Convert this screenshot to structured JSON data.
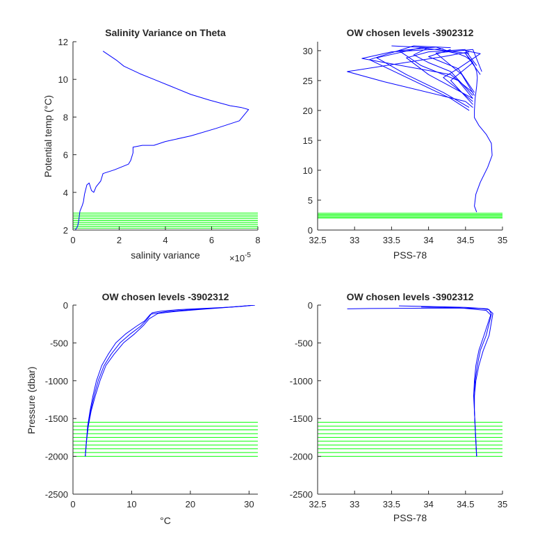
{
  "colors": {
    "profile": "#0000ff",
    "levels": "#00ff00",
    "axis": "#262626",
    "background": "#ffffff"
  },
  "chart_data": [
    {
      "id": "p1",
      "type": "line",
      "title": "Salinity Variance on Theta",
      "xlabel": "salinity variance",
      "ylabel": "Potential temp (°C)",
      "xlim": [
        0,
        8
      ],
      "ylim": [
        2,
        12
      ],
      "xticks": [
        0,
        2,
        4,
        6,
        8
      ],
      "yticks": [
        2,
        4,
        6,
        8,
        10,
        12
      ],
      "x_exponent_label": "×10",
      "x_exponent": "-5",
      "series": [
        {
          "kind": "profile",
          "x": [
            1.3,
            1.9,
            2.2,
            2.9,
            3.5,
            4.3,
            5.1,
            5.9,
            6.8,
            7.3,
            7.6,
            7.2,
            6.2,
            5.1,
            4.0,
            3.5,
            3.0,
            2.6,
            2.6,
            2.5,
            2.4,
            1.8,
            1.3,
            1.2,
            1.0,
            0.9,
            0.8,
            0.7,
            0.6,
            0.5,
            0.45,
            0.4,
            0.3,
            0.25,
            0.2,
            0.1
          ],
          "y": [
            11.5,
            11.0,
            10.7,
            10.3,
            10.0,
            9.6,
            9.2,
            8.9,
            8.6,
            8.5,
            8.4,
            7.8,
            7.4,
            7.0,
            6.7,
            6.5,
            6.5,
            6.4,
            6.1,
            5.7,
            5.5,
            5.2,
            5.0,
            4.6,
            4.3,
            4.0,
            4.1,
            4.5,
            4.4,
            3.9,
            3.5,
            3.3,
            3.0,
            2.5,
            2.2,
            2.0
          ]
        }
      ],
      "hlines": {
        "values": [
          2.1,
          2.2,
          2.3,
          2.4,
          2.5,
          2.6,
          2.7,
          2.8,
          2.9
        ],
        "xrange": [
          0,
          8
        ]
      }
    },
    {
      "id": "p2",
      "type": "line",
      "title": "OW chosen levels -3902312",
      "xlabel": "PSS-78",
      "ylabel": "",
      "xlim": [
        32.5,
        35
      ],
      "ylim": [
        0,
        31.5
      ],
      "xticks": [
        32.5,
        33,
        33.5,
        34,
        34.5,
        35
      ],
      "yticks": [
        0,
        5,
        10,
        15,
        20,
        25,
        30
      ],
      "series": [
        {
          "kind": "profile",
          "x": [
            34.65,
            34.62,
            34.64,
            34.7,
            34.8,
            34.86,
            34.85,
            34.78,
            34.68,
            34.62,
            34.62,
            34.63,
            34.65,
            34.66,
            34.65,
            34.62,
            34.58,
            34.5,
            34.4,
            34.2
          ],
          "y": [
            3.0,
            4.0,
            6.0,
            8.0,
            10.5,
            12.5,
            14.5,
            16.0,
            17.5,
            18.8,
            20.0,
            22.0,
            24.0,
            25.5,
            26.5,
            27.5,
            28.3,
            29.0,
            29.5,
            30.0
          ]
        },
        {
          "kind": "profile",
          "x": [
            34.6,
            34.5,
            33.4,
            32.9,
            34.2,
            34.55
          ],
          "y": [
            20.5,
            21.5,
            24.8,
            26.5,
            29.0,
            29.8
          ]
        },
        {
          "kind": "profile",
          "x": [
            34.55,
            34.3,
            33.2,
            33.8,
            34.3
          ],
          "y": [
            20.0,
            22.0,
            28.5,
            30.8,
            30.5
          ]
        },
        {
          "kind": "profile",
          "x": [
            34.55,
            34.2,
            33.7,
            33.3,
            33.9,
            34.55
          ],
          "y": [
            20.5,
            23.0,
            26.0,
            28.8,
            30.5,
            29.5
          ]
        },
        {
          "kind": "profile",
          "x": [
            34.6,
            34.3,
            34.6,
            34.5,
            34.7
          ],
          "y": [
            21.0,
            25.0,
            28.0,
            29.5,
            26.0
          ]
        },
        {
          "kind": "profile",
          "x": [
            34.6,
            34.2,
            34.4,
            34.0,
            34.3
          ],
          "y": [
            21.5,
            25.5,
            27.0,
            29.0,
            30.2
          ]
        },
        {
          "kind": "profile",
          "x": [
            34.6,
            34.4,
            33.9,
            33.6,
            34.1,
            34.35
          ],
          "y": [
            22.0,
            25.0,
            27.5,
            30.0,
            30.6,
            29.6
          ]
        },
        {
          "kind": "profile",
          "x": [
            34.6,
            34.0,
            33.7,
            34.0,
            34.5
          ],
          "y": [
            22.0,
            26.0,
            28.8,
            29.8,
            30.2
          ]
        },
        {
          "kind": "profile",
          "x": [
            34.62,
            34.4,
            34.7,
            34.5,
            34.65
          ],
          "y": [
            23.0,
            27.0,
            29.5,
            30.0,
            27.5
          ]
        },
        {
          "kind": "profile",
          "x": [
            34.6,
            34.3,
            34.0,
            33.8,
            34.0,
            33.5
          ],
          "y": [
            22.5,
            26.5,
            28.0,
            29.3,
            30.5,
            30.8
          ]
        },
        {
          "kind": "profile",
          "x": [
            34.6,
            34.3,
            33.1,
            33.5,
            34.2
          ],
          "y": [
            23.0,
            26.0,
            28.7,
            29.8,
            30.3
          ]
        },
        {
          "kind": "profile",
          "x": [
            34.62,
            34.45,
            34.1,
            34.6,
            34.72
          ],
          "y": [
            22.5,
            26.0,
            29.6,
            30.2,
            26.5
          ]
        }
      ],
      "hlines": {
        "values": [
          2.0,
          2.2,
          2.4,
          2.6,
          2.8
        ],
        "xrange": [
          32.5,
          35
        ]
      }
    },
    {
      "id": "p3",
      "type": "line",
      "title": "OW chosen levels -3902312",
      "xlabel": "°C",
      "ylabel": "Pressure (dbar)",
      "xlim": [
        0,
        31.5
      ],
      "ylim": [
        -2500,
        0
      ],
      "xticks": [
        0,
        10,
        20,
        30
      ],
      "yticks": [
        -2500,
        -2000,
        -1500,
        -1000,
        -500,
        0
      ],
      "series": [
        {
          "kind": "profile",
          "x": [
            2.1,
            2.3,
            2.6,
            3.0,
            3.6,
            4.3,
            5.3,
            6.5,
            8.0,
            9.8,
            11.5,
            12.5,
            13.5,
            15,
            18,
            22,
            26,
            29,
            31
          ],
          "y": [
            -2000,
            -1800,
            -1600,
            -1400,
            -1200,
            -1000,
            -800,
            -650,
            -500,
            -380,
            -280,
            -200,
            -100,
            -80,
            -60,
            -45,
            -30,
            -15,
            0
          ]
        },
        {
          "kind": "profile",
          "x": [
            2.1,
            2.3,
            2.6,
            3.1,
            3.8,
            4.6,
            5.6,
            7.0,
            8.6,
            10.5,
            12.0,
            13.0,
            14.5,
            18,
            23,
            28,
            31
          ],
          "y": [
            -2000,
            -1800,
            -1600,
            -1400,
            -1200,
            -1000,
            -800,
            -650,
            -500,
            -380,
            -270,
            -180,
            -110,
            -80,
            -50,
            -20,
            0
          ]
        },
        {
          "kind": "profile",
          "x": [
            2.1,
            2.3,
            2.5,
            2.9,
            3.4,
            4.0,
            4.9,
            6.0,
            7.3,
            9.0,
            10.8,
            12.2,
            13.2,
            16,
            21,
            27,
            31
          ],
          "y": [
            -2000,
            -1800,
            -1600,
            -1400,
            -1200,
            -1000,
            -800,
            -650,
            -500,
            -380,
            -280,
            -210,
            -120,
            -85,
            -55,
            -25,
            0
          ]
        }
      ],
      "hlines": {
        "values": [
          -2000,
          -1950,
          -1900,
          -1850,
          -1800,
          -1750,
          -1700,
          -1650,
          -1600,
          -1550
        ],
        "xrange": [
          0,
          31.5
        ]
      }
    },
    {
      "id": "p4",
      "type": "line",
      "title": "OW chosen levels -3902312",
      "xlabel": "PSS-78",
      "ylabel": "",
      "xlim": [
        32.5,
        35
      ],
      "ylim": [
        -2500,
        0
      ],
      "xticks": [
        32.5,
        33,
        33.5,
        34,
        34.5,
        35
      ],
      "yticks": [
        -2500,
        -2000,
        -1500,
        -1000,
        -500,
        0
      ],
      "series": [
        {
          "kind": "profile",
          "x": [
            34.65,
            34.64,
            34.63,
            34.62,
            34.62,
            34.63,
            34.66,
            34.7,
            34.78,
            34.85,
            34.82,
            34.7,
            34.5,
            34.0,
            33.2,
            32.9
          ],
          "y": [
            -2000,
            -1800,
            -1600,
            -1400,
            -1200,
            -1000,
            -800,
            -600,
            -400,
            -120,
            -60,
            -45,
            -40,
            -40,
            -45,
            -50
          ]
        },
        {
          "kind": "profile",
          "x": [
            34.65,
            34.64,
            34.63,
            34.62,
            34.62,
            34.64,
            34.68,
            34.74,
            34.82,
            34.87,
            34.8,
            34.5,
            34.1,
            33.6
          ],
          "y": [
            -2000,
            -1800,
            -1600,
            -1400,
            -1200,
            -1000,
            -800,
            -600,
            -400,
            -110,
            -50,
            -30,
            -20,
            -10
          ]
        },
        {
          "kind": "profile",
          "x": [
            34.65,
            34.64,
            34.63,
            34.62,
            34.61,
            34.62,
            34.64,
            34.68,
            34.75,
            34.84,
            34.78,
            34.4,
            33.9
          ],
          "y": [
            -2000,
            -1800,
            -1600,
            -1400,
            -1200,
            -1000,
            -800,
            -600,
            -400,
            -130,
            -70,
            -35,
            -25
          ]
        }
      ],
      "hlines": {
        "values": [
          -2000,
          -1950,
          -1900,
          -1850,
          -1800,
          -1750,
          -1700,
          -1650,
          -1600,
          -1550
        ],
        "xrange": [
          32.5,
          35
        ]
      }
    }
  ]
}
